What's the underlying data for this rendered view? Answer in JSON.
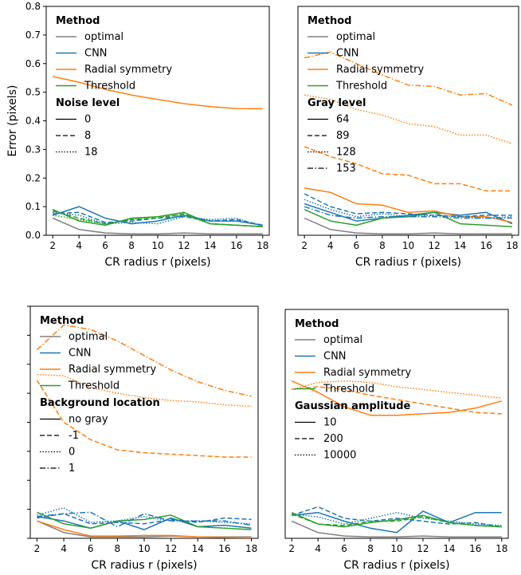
{
  "chart_data": [
    {
      "type": "line",
      "xlabel": "CR radius r (pixels)",
      "ylabel": "Error (pixels)",
      "xlim": [
        1.5,
        18.5
      ],
      "ylim": [
        0,
        0.8
      ],
      "xticks": [
        2,
        4,
        6,
        8,
        10,
        12,
        14,
        16,
        18
      ],
      "yticks": [
        0.0,
        0.1,
        0.2,
        0.3,
        0.4,
        0.5,
        0.6,
        0.7,
        0.8
      ],
      "x": [
        2,
        4,
        6,
        8,
        10,
        12,
        14,
        16,
        18
      ],
      "legend_method_title": "Method",
      "legend_group_title": "Noise level",
      "legend_placement": "top-left",
      "series": [
        {
          "name": "optimal",
          "method": "optimal",
          "style": "solid",
          "values": [
            0.06,
            0.02,
            0.008,
            0.005,
            0.005,
            0.008,
            0.005,
            0.005,
            0.005
          ]
        },
        {
          "name": "CNN",
          "method": "CNN",
          "style": "solid",
          "values": [
            0.07,
            0.1,
            0.06,
            0.04,
            0.05,
            0.07,
            0.05,
            0.05,
            0.035
          ]
        },
        {
          "name": "Radial symmetry",
          "method": "Radial symmetry",
          "style": "solid",
          "values": [
            0.555,
            0.535,
            0.51,
            0.49,
            0.475,
            0.46,
            0.45,
            0.443,
            0.442
          ]
        },
        {
          "name": "Threshold",
          "method": "Threshold",
          "style": "solid",
          "values": [
            0.09,
            0.05,
            0.035,
            0.06,
            0.065,
            0.08,
            0.04,
            0.035,
            0.03
          ]
        },
        {
          "method": "CNN",
          "style": "dashed",
          "values": [
            0.075,
            0.08,
            0.045,
            0.05,
            0.06,
            0.065,
            0.05,
            0.055,
            0.035
          ]
        },
        {
          "method": "Threshold",
          "style": "dashed",
          "values": [
            0.085,
            0.06,
            0.04,
            0.055,
            0.06,
            0.075,
            0.04,
            0.035,
            0.03
          ]
        },
        {
          "method": "CNN",
          "style": "dotted",
          "values": [
            0.08,
            0.07,
            0.04,
            0.045,
            0.04,
            0.065,
            0.055,
            0.06,
            0.03
          ]
        },
        {
          "method": "Threshold",
          "style": "dotted",
          "values": [
            0.07,
            0.055,
            0.04,
            0.055,
            0.065,
            0.07,
            0.04,
            0.035,
            0.03
          ]
        }
      ],
      "group_legend": [
        {
          "label": "0",
          "style": "solid"
        },
        {
          "label": "8",
          "style": "dashed"
        },
        {
          "label": "18",
          "style": "dotted"
        }
      ]
    },
    {
      "type": "line",
      "xlabel": "CR radius r (pixels)",
      "ylabel": "",
      "xlim": [
        1.5,
        18.5
      ],
      "ylim": [
        0,
        0.8
      ],
      "xticks": [
        2,
        4,
        6,
        8,
        10,
        12,
        14,
        16,
        18
      ],
      "yticks": [],
      "x": [
        2,
        4,
        6,
        8,
        10,
        12,
        14,
        16,
        18
      ],
      "legend_method_title": "Method",
      "legend_group_title": "Gray level",
      "legend_placement": "top-left",
      "series": [
        {
          "name": "optimal",
          "method": "optimal",
          "style": "solid",
          "values": [
            0.06,
            0.02,
            0.008,
            0.005,
            0.005,
            0.008,
            0.005,
            0.005,
            0.005
          ]
        },
        {
          "name": "CNN",
          "method": "CNN",
          "style": "solid",
          "values": [
            0.11,
            0.08,
            0.05,
            0.06,
            0.07,
            0.08,
            0.07,
            0.08,
            0.04
          ]
        },
        {
          "name": "Radial symmetry",
          "method": "Radial symmetry",
          "style": "solid",
          "values": [
            0.165,
            0.15,
            0.11,
            0.105,
            0.08,
            0.085,
            0.065,
            0.065,
            0.045
          ]
        },
        {
          "name": "Threshold",
          "method": "Threshold",
          "style": "solid",
          "values": [
            0.09,
            0.05,
            0.035,
            0.06,
            0.065,
            0.08,
            0.04,
            0.035,
            0.03
          ]
        },
        {
          "method": "Radial symmetry",
          "style": "dashed",
          "values": [
            0.31,
            0.275,
            0.25,
            0.215,
            0.21,
            0.18,
            0.18,
            0.155,
            0.155
          ]
        },
        {
          "method": "Radial symmetry",
          "style": "dotted",
          "values": [
            0.49,
            0.475,
            0.44,
            0.42,
            0.39,
            0.38,
            0.35,
            0.35,
            0.32
          ]
        },
        {
          "method": "Radial symmetry",
          "style": "dashdot",
          "values": [
            0.62,
            0.64,
            0.6,
            0.56,
            0.525,
            0.52,
            0.49,
            0.495,
            0.455
          ]
        },
        {
          "method": "CNN",
          "style": "dashed",
          "values": [
            0.145,
            0.1,
            0.075,
            0.08,
            0.075,
            0.07,
            0.065,
            0.07,
            0.07
          ]
        },
        {
          "method": "CNN",
          "style": "dotted",
          "values": [
            0.125,
            0.09,
            0.065,
            0.075,
            0.065,
            0.07,
            0.065,
            0.06,
            0.065
          ]
        },
        {
          "method": "CNN",
          "style": "dashdot",
          "values": [
            0.1,
            0.07,
            0.06,
            0.065,
            0.065,
            0.065,
            0.06,
            0.06,
            0.06
          ]
        }
      ],
      "group_legend": [
        {
          "label": "64",
          "style": "solid"
        },
        {
          "label": "89",
          "style": "dashed"
        },
        {
          "label": "128",
          "style": "dotted"
        },
        {
          "label": "153",
          "style": "dashdot"
        }
      ]
    },
    {
      "type": "line",
      "xlabel": "CR radius r (pixels)",
      "ylabel": "",
      "xlim": [
        1.5,
        18.5
      ],
      "ylim": [
        0,
        0.8
      ],
      "xticks": [
        2,
        4,
        6,
        8,
        10,
        12,
        14,
        16,
        18
      ],
      "yticks": [
        0.0,
        0.1,
        0.2,
        0.3,
        0.4,
        0.5,
        0.6,
        0.7,
        0.8
      ],
      "ytick_labels_shown": false,
      "x": [
        2,
        4,
        6,
        8,
        10,
        12,
        14,
        16,
        18
      ],
      "legend_method_title": "Method",
      "legend_group_title": "Background location",
      "legend_placement": "top-left",
      "series": [
        {
          "name": "optimal",
          "method": "optimal",
          "style": "solid",
          "values": [
            0.06,
            0.02,
            0.005,
            0.005,
            0.005,
            0.008,
            0.005,
            0.005,
            0.005
          ]
        },
        {
          "name": "CNN",
          "method": "CNN",
          "style": "solid",
          "values": [
            0.075,
            0.06,
            0.035,
            0.06,
            0.03,
            0.07,
            0.04,
            0.045,
            0.035
          ]
        },
        {
          "name": "Radial symmetry",
          "method": "Radial symmetry",
          "style": "solid",
          "values": [
            0.06,
            0.03,
            0.008,
            0.008,
            0.01,
            0.01,
            0.005,
            0.003,
            0.002
          ]
        },
        {
          "name": "Threshold",
          "method": "Threshold",
          "style": "solid",
          "values": [
            0.09,
            0.05,
            0.035,
            0.06,
            0.065,
            0.08,
            0.04,
            0.035,
            0.03
          ]
        },
        {
          "method": "Radial symmetry",
          "style": "dashed",
          "values": [
            0.545,
            0.4,
            0.34,
            0.305,
            0.295,
            0.29,
            0.285,
            0.28,
            0.28
          ]
        },
        {
          "method": "Radial symmetry",
          "style": "dotted",
          "values": [
            0.565,
            0.56,
            0.52,
            0.5,
            0.485,
            0.475,
            0.47,
            0.46,
            0.455
          ]
        },
        {
          "method": "Radial symmetry",
          "style": "dashdot",
          "values": [
            0.65,
            0.735,
            0.72,
            0.68,
            0.63,
            0.58,
            0.54,
            0.51,
            0.49
          ]
        },
        {
          "method": "CNN",
          "style": "dashed",
          "values": [
            0.07,
            0.085,
            0.05,
            0.055,
            0.05,
            0.065,
            0.055,
            0.07,
            0.065
          ]
        },
        {
          "method": "CNN",
          "style": "dotted",
          "values": [
            0.08,
            0.105,
            0.055,
            0.06,
            0.075,
            0.06,
            0.06,
            0.055,
            0.05
          ]
        },
        {
          "method": "CNN",
          "style": "dashdot",
          "values": [
            0.075,
            0.085,
            0.09,
            0.04,
            0.085,
            0.06,
            0.06,
            0.06,
            0.045
          ]
        }
      ],
      "group_legend": [
        {
          "label": "no gray",
          "style": "solid"
        },
        {
          "label": "-1",
          "style": "dashed"
        },
        {
          "label": "0",
          "style": "dotted"
        },
        {
          "label": "1",
          "style": "dashdot"
        }
      ]
    },
    {
      "type": "line",
      "xlabel": "CR radius r (pixels)",
      "ylabel": "",
      "xlim": [
        1.5,
        18.5
      ],
      "ylim": [
        0,
        0.8
      ],
      "xticks": [
        2,
        4,
        6,
        8,
        10,
        12,
        14,
        16,
        18
      ],
      "yticks": [],
      "x": [
        2,
        4,
        6,
        8,
        10,
        12,
        14,
        16,
        18
      ],
      "legend_method_title": "Method",
      "legend_group_title": "Gaussian amplitude",
      "legend_placement": "top-left",
      "series": [
        {
          "name": "optimal",
          "method": "optimal",
          "style": "solid",
          "values": [
            0.06,
            0.02,
            0.008,
            0.005,
            0.005,
            0.008,
            0.005,
            0.005,
            0.005
          ]
        },
        {
          "name": "CNN",
          "method": "CNN",
          "style": "solid",
          "values": [
            0.08,
            0.09,
            0.06,
            0.035,
            0.02,
            0.095,
            0.055,
            0.09,
            0.09
          ]
        },
        {
          "name": "Radial symmetry",
          "method": "Radial symmetry",
          "style": "solid",
          "values": [
            0.55,
            0.51,
            0.46,
            0.43,
            0.43,
            0.435,
            0.44,
            0.455,
            0.48
          ]
        },
        {
          "name": "Threshold",
          "method": "Threshold",
          "style": "solid",
          "values": [
            0.09,
            0.05,
            0.04,
            0.055,
            0.065,
            0.08,
            0.055,
            0.045,
            0.04
          ]
        },
        {
          "method": "Radial symmetry",
          "style": "dashed",
          "values": [
            0.52,
            0.53,
            0.52,
            0.5,
            0.485,
            0.47,
            0.455,
            0.44,
            0.435
          ]
        },
        {
          "method": "Radial symmetry",
          "style": "dotted",
          "values": [
            0.52,
            0.545,
            0.55,
            0.545,
            0.53,
            0.52,
            0.51,
            0.5,
            0.49
          ]
        },
        {
          "method": "CNN",
          "style": "dashed",
          "values": [
            0.08,
            0.11,
            0.07,
            0.06,
            0.07,
            0.06,
            0.05,
            0.055,
            0.04
          ]
        },
        {
          "method": "CNN",
          "style": "dotted",
          "values": [
            0.085,
            0.075,
            0.05,
            0.07,
            0.09,
            0.07,
            0.06,
            0.05,
            0.045
          ]
        },
        {
          "method": "Threshold",
          "style": "dashed",
          "values": [
            0.085,
            0.05,
            0.045,
            0.06,
            0.06,
            0.075,
            0.055,
            0.045,
            0.04
          ]
        }
      ],
      "group_legend": [
        {
          "label": "10",
          "style": "solid"
        },
        {
          "label": "200",
          "style": "dashed"
        },
        {
          "label": "10000",
          "style": "dotted"
        }
      ]
    }
  ],
  "colors": {
    "optimal": "#808080",
    "CNN": "#1f77b4",
    "Radial symmetry": "#ff7f0e",
    "Threshold": "#2ca02c"
  },
  "legend_methods": [
    "optimal",
    "CNN",
    "Radial symmetry",
    "Threshold"
  ]
}
